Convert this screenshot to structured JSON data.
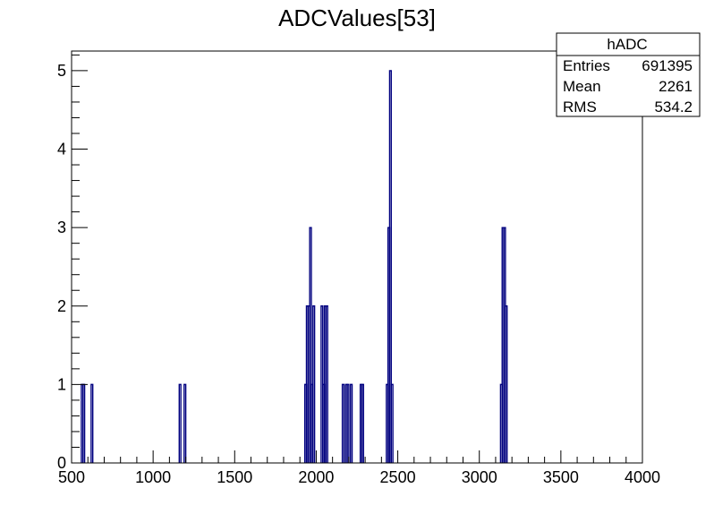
{
  "chart_data": {
    "type": "bar",
    "title": "ADCValues[53]",
    "xlabel": "",
    "ylabel": "",
    "xlim": [
      500,
      4000
    ],
    "ylim": [
      0,
      5.25
    ],
    "grid": false,
    "x_ticks": [
      "500",
      "1000",
      "1500",
      "2000",
      "2500",
      "3000",
      "3500",
      "4000"
    ],
    "y_ticks": [
      "0",
      "1",
      "2",
      "3",
      "4",
      "5"
    ],
    "bin_width": 10,
    "series": [
      {
        "color": "#00007f",
        "bins": [
          {
            "x": 560,
            "y": 1
          },
          {
            "x": 570,
            "y": 1
          },
          {
            "x": 620,
            "y": 1
          },
          {
            "x": 1160,
            "y": 1
          },
          {
            "x": 1190,
            "y": 1
          },
          {
            "x": 1930,
            "y": 1
          },
          {
            "x": 1940,
            "y": 2
          },
          {
            "x": 1950,
            "y": 2
          },
          {
            "x": 1960,
            "y": 3
          },
          {
            "x": 1970,
            "y": 1
          },
          {
            "x": 1980,
            "y": 2
          },
          {
            "x": 2030,
            "y": 2
          },
          {
            "x": 2040,
            "y": 1
          },
          {
            "x": 2050,
            "y": 2
          },
          {
            "x": 2060,
            "y": 2
          },
          {
            "x": 2160,
            "y": 1
          },
          {
            "x": 2180,
            "y": 1
          },
          {
            "x": 2190,
            "y": 1
          },
          {
            "x": 2210,
            "y": 1
          },
          {
            "x": 2270,
            "y": 1
          },
          {
            "x": 2280,
            "y": 1
          },
          {
            "x": 2430,
            "y": 1
          },
          {
            "x": 2440,
            "y": 3
          },
          {
            "x": 2450,
            "y": 5
          },
          {
            "x": 2460,
            "y": 1
          },
          {
            "x": 3130,
            "y": 1
          },
          {
            "x": 3140,
            "y": 3
          },
          {
            "x": 3150,
            "y": 3
          },
          {
            "x": 3160,
            "y": 2
          }
        ]
      }
    ],
    "stats_box": {
      "name": "hADC",
      "rows": [
        {
          "label": "Entries",
          "value": "691395"
        },
        {
          "label": "Mean",
          "value": "2261"
        },
        {
          "label": "RMS",
          "value": "534.2"
        }
      ]
    }
  }
}
